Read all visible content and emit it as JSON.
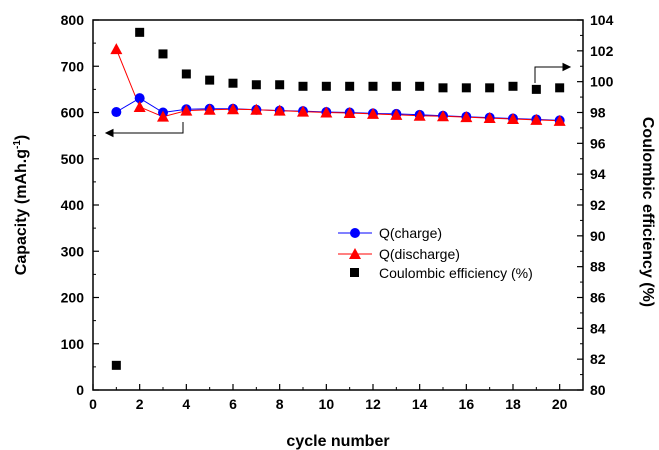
{
  "chart_data": {
    "type": "line",
    "xlabel": "cycle number",
    "ylabel_left": "Capacity (mAh.g",
    "ylabel_left_sup": "-1",
    "ylabel_left_close": ")",
    "ylabel_right": "Coulombic efficiency (%)",
    "xlim": [
      0,
      21
    ],
    "ylim_left": [
      0,
      800
    ],
    "ylim_right": [
      80,
      104
    ],
    "x_ticks": [
      "0",
      "2",
      "4",
      "6",
      "8",
      "10",
      "12",
      "14",
      "16",
      "18",
      "20"
    ],
    "y_left_ticks": [
      "0",
      "100",
      "200",
      "300",
      "400",
      "500",
      "600",
      "700",
      "800"
    ],
    "y_right_ticks": [
      "80",
      "82",
      "84",
      "86",
      "88",
      "90",
      "92",
      "94",
      "96",
      "98",
      "100",
      "102",
      "104"
    ],
    "x": [
      1,
      2,
      3,
      4,
      5,
      6,
      7,
      8,
      9,
      10,
      11,
      12,
      13,
      14,
      15,
      16,
      17,
      18,
      19,
      20
    ],
    "series": [
      {
        "name": "Q(charge)",
        "axis": "left",
        "color": "#0000ff",
        "marker": "circle",
        "values": [
          601,
          631,
          600,
          607,
          608,
          608,
          606,
          604,
          603,
          601,
          600,
          598,
          597,
          595,
          593,
          591,
          589,
          587,
          585,
          583
        ]
      },
      {
        "name": "Q(discharge)",
        "axis": "left",
        "color": "#ff0000",
        "marker": "triangle",
        "values": [
          737,
          612,
          591,
          604,
          606,
          607,
          606,
          604,
          602,
          600,
          599,
          597,
          595,
          593,
          592,
          590,
          588,
          586,
          584,
          582
        ]
      },
      {
        "name": "Coulombic efficiency (%)",
        "axis": "right",
        "color": "#000000",
        "marker": "square",
        "values": [
          81.6,
          103.2,
          101.8,
          100.5,
          100.1,
          99.9,
          99.8,
          99.8,
          99.7,
          99.7,
          99.7,
          99.7,
          99.7,
          99.7,
          99.6,
          99.6,
          99.6,
          99.7,
          99.5,
          99.6
        ]
      }
    ]
  }
}
